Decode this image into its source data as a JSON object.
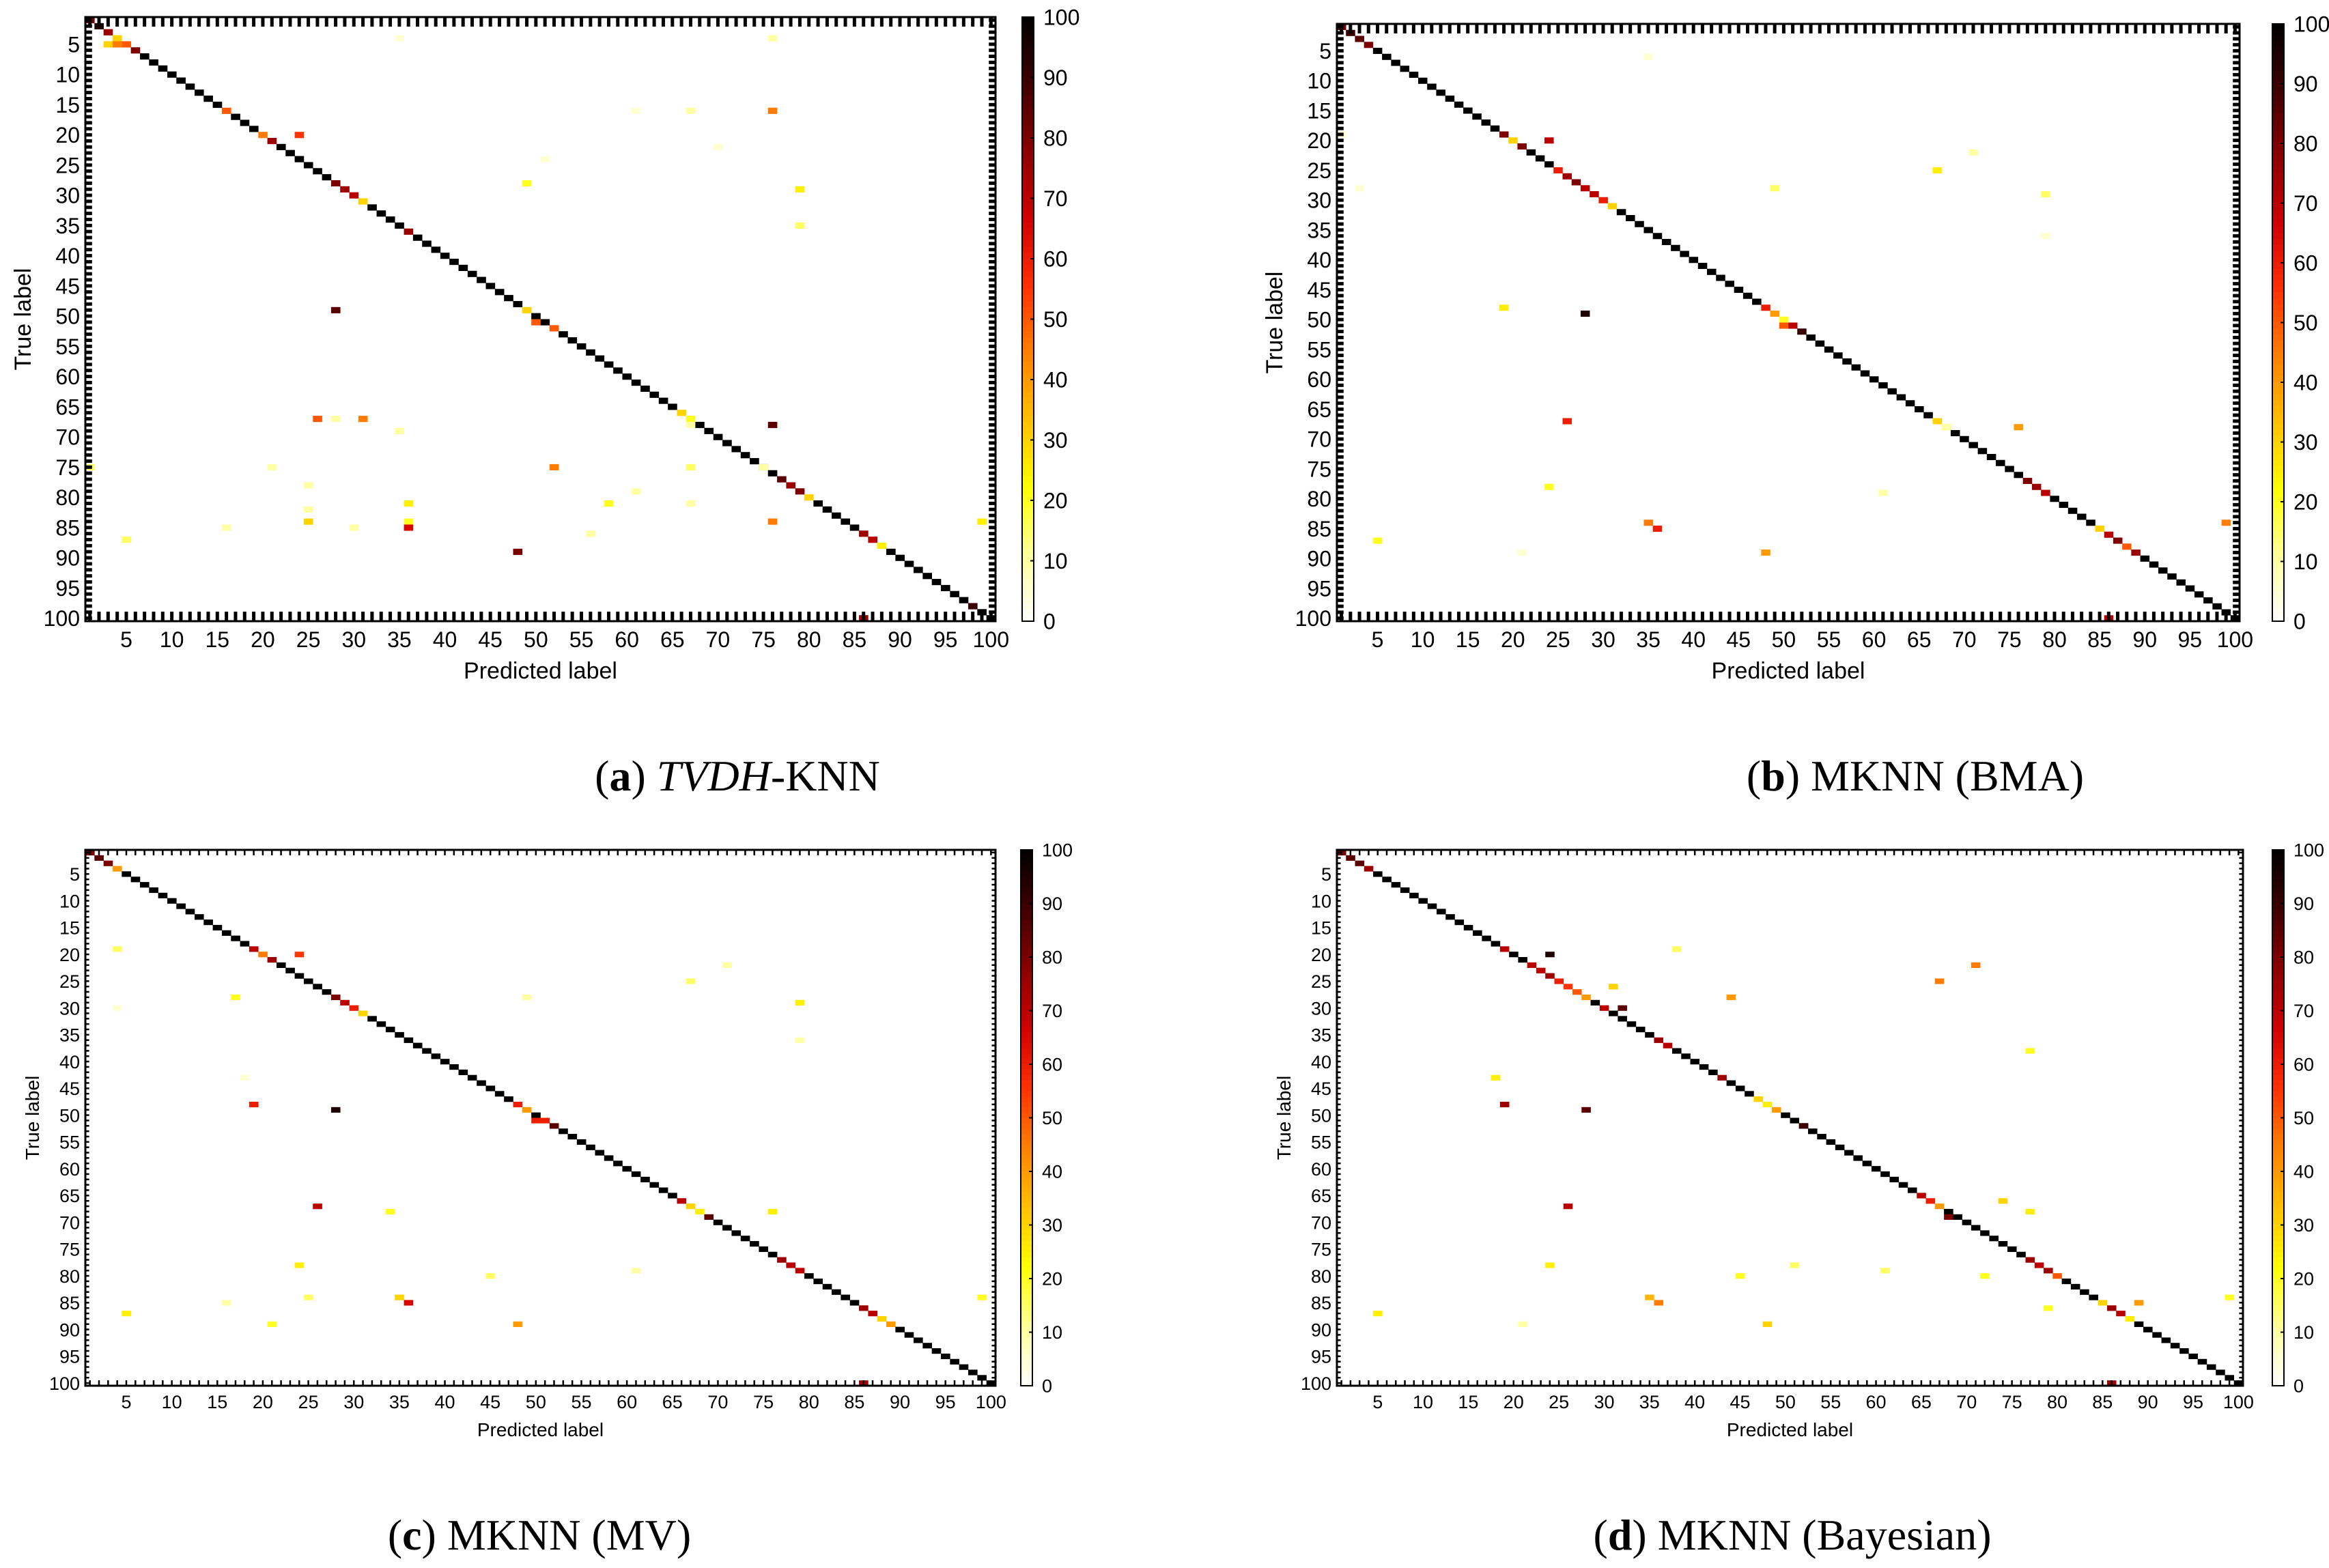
{
  "figure": {
    "colorbar": {
      "ticks": [
        0,
        10,
        20,
        30,
        40,
        50,
        60,
        70,
        80,
        90,
        100
      ],
      "colormap": [
        "#ffffff",
        "#ffff99",
        "#ffff00",
        "#ffc000",
        "#ff8000",
        "#ff3000",
        "#d00000",
        "#8b0000",
        "#400000",
        "#000000"
      ]
    }
  },
  "chart_data": [
    {
      "type": "heatmap",
      "title": "",
      "caption": {
        "letter": "(a)",
        "italic": "TVDH",
        "rest": "-KNN"
      },
      "xlabel": "Predicted label",
      "ylabel": "True label",
      "n_classes": 100,
      "xticks": [
        5,
        10,
        15,
        20,
        25,
        30,
        35,
        40,
        45,
        50,
        55,
        60,
        65,
        70,
        75,
        80,
        85,
        90,
        95,
        100
      ],
      "yticks": [
        5,
        10,
        15,
        20,
        25,
        30,
        35,
        40,
        45,
        50,
        55,
        60,
        65,
        70,
        75,
        80,
        85,
        90,
        95,
        100
      ],
      "zlim": [
        0,
        100
      ],
      "diagonal_default": 100,
      "diagonal_overrides": [
        [
          1,
          80
        ],
        [
          2,
          95
        ],
        [
          3,
          75
        ],
        [
          4,
          30
        ],
        [
          5,
          50
        ],
        [
          6,
          80
        ],
        [
          16,
          50
        ],
        [
          20,
          45
        ],
        [
          21,
          75
        ],
        [
          28,
          80
        ],
        [
          29,
          75
        ],
        [
          30,
          70
        ],
        [
          31,
          30
        ],
        [
          36,
          75
        ],
        [
          49,
          30
        ],
        [
          52,
          50
        ],
        [
          66,
          30
        ],
        [
          67,
          20
        ],
        [
          77,
          85
        ],
        [
          78,
          75
        ],
        [
          79,
          80
        ],
        [
          80,
          30
        ],
        [
          86,
          75
        ],
        [
          87,
          70
        ],
        [
          88,
          25
        ],
        [
          98,
          90
        ]
      ],
      "cells": [
        [
          5,
          3,
          30
        ],
        [
          5,
          4,
          45
        ],
        [
          4,
          35,
          5
        ],
        [
          4,
          76,
          10
        ],
        [
          16,
          61,
          5
        ],
        [
          16,
          67,
          10
        ],
        [
          16,
          76,
          45
        ],
        [
          20,
          24,
          55
        ],
        [
          22,
          70,
          5
        ],
        [
          24,
          51,
          5
        ],
        [
          28,
          49,
          20
        ],
        [
          29,
          79,
          25
        ],
        [
          35,
          79,
          15
        ],
        [
          49,
          28,
          85
        ],
        [
          51,
          50,
          50
        ],
        [
          67,
          26,
          50
        ],
        [
          67,
          31,
          45
        ],
        [
          67,
          28,
          10
        ],
        [
          68,
          76,
          85
        ],
        [
          68,
          67,
          10
        ],
        [
          69,
          35,
          10
        ],
        [
          75,
          1,
          15
        ],
        [
          75,
          21,
          10
        ],
        [
          75,
          52,
          45
        ],
        [
          75,
          67,
          15
        ],
        [
          75,
          75,
          10
        ],
        [
          78,
          25,
          10
        ],
        [
          79,
          61,
          10
        ],
        [
          81,
          36,
          25
        ],
        [
          81,
          58,
          20
        ],
        [
          81,
          67,
          10
        ],
        [
          82,
          25,
          10
        ],
        [
          84,
          25,
          30
        ],
        [
          84,
          36,
          20
        ],
        [
          84,
          76,
          45
        ],
        [
          84,
          99,
          25
        ],
        [
          85,
          16,
          10
        ],
        [
          85,
          30,
          10
        ],
        [
          85,
          36,
          65
        ],
        [
          86,
          56,
          10
        ],
        [
          87,
          5,
          15
        ],
        [
          89,
          48,
          80
        ],
        [
          100,
          86,
          75
        ]
      ]
    },
    {
      "type": "heatmap",
      "title": "",
      "caption": {
        "letter": "(b)",
        "italic": "",
        "rest": "MKNN (BMA)"
      },
      "xlabel": "Predicted label",
      "ylabel": "True label",
      "n_classes": 100,
      "xticks": [
        5,
        10,
        15,
        20,
        25,
        30,
        35,
        40,
        45,
        50,
        55,
        60,
        65,
        70,
        75,
        80,
        85,
        90,
        95,
        100
      ],
      "yticks": [
        5,
        10,
        15,
        20,
        25,
        30,
        35,
        40,
        45,
        50,
        55,
        60,
        65,
        70,
        75,
        80,
        85,
        90,
        95,
        100
      ],
      "zlim": [
        0,
        100
      ],
      "diagonal_default": 100,
      "diagonal_overrides": [
        [
          1,
          80
        ],
        [
          2,
          90
        ],
        [
          3,
          85
        ],
        [
          4,
          80
        ],
        [
          19,
          80
        ],
        [
          20,
          30
        ],
        [
          21,
          80
        ],
        [
          25,
          60
        ],
        [
          26,
          75
        ],
        [
          27,
          80
        ],
        [
          28,
          70
        ],
        [
          29,
          70
        ],
        [
          30,
          60
        ],
        [
          31,
          30
        ],
        [
          48,
          60
        ],
        [
          49,
          40
        ],
        [
          50,
          20
        ],
        [
          51,
          70
        ],
        [
          52,
          90
        ],
        [
          67,
          30
        ],
        [
          68,
          20
        ],
        [
          77,
          80
        ],
        [
          78,
          75
        ],
        [
          79,
          70
        ],
        [
          85,
          30
        ],
        [
          86,
          70
        ],
        [
          87,
          80
        ],
        [
          88,
          50
        ],
        [
          89,
          75
        ]
      ],
      "cells": [
        [
          6,
          35,
          5
        ],
        [
          19,
          1,
          5
        ],
        [
          20,
          24,
          70
        ],
        [
          22,
          71,
          10
        ],
        [
          25,
          67,
          25
        ],
        [
          28,
          49,
          15
        ],
        [
          28,
          3,
          5
        ],
        [
          29,
          79,
          15
        ],
        [
          36,
          79,
          5
        ],
        [
          48,
          19,
          25
        ],
        [
          49,
          28,
          95
        ],
        [
          51,
          50,
          50
        ],
        [
          67,
          26,
          60
        ],
        [
          68,
          76,
          40
        ],
        [
          68,
          68,
          10
        ],
        [
          78,
          24,
          20
        ],
        [
          79,
          61,
          10
        ],
        [
          84,
          35,
          45
        ],
        [
          84,
          99,
          45
        ],
        [
          85,
          36,
          60
        ],
        [
          87,
          5,
          20
        ],
        [
          89,
          48,
          40
        ],
        [
          89,
          21,
          5
        ],
        [
          100,
          86,
          70
        ]
      ]
    },
    {
      "type": "heatmap",
      "title": "",
      "caption": {
        "letter": "(c)",
        "italic": "",
        "rest": "MKNN (MV)"
      },
      "xlabel": "Predicted label",
      "ylabel": "True label",
      "n_classes": 100,
      "xticks": [
        5,
        10,
        15,
        20,
        25,
        30,
        35,
        40,
        45,
        50,
        55,
        60,
        65,
        70,
        75,
        80,
        85,
        90,
        95,
        100
      ],
      "yticks": [
        5,
        10,
        15,
        20,
        25,
        30,
        35,
        40,
        45,
        50,
        55,
        60,
        65,
        70,
        75,
        80,
        85,
        90,
        95,
        100
      ],
      "zlim": [
        0,
        100
      ],
      "diagonal_default": 100,
      "diagonal_overrides": [
        [
          1,
          80
        ],
        [
          2,
          85
        ],
        [
          3,
          80
        ],
        [
          4,
          40
        ],
        [
          19,
          70
        ],
        [
          20,
          45
        ],
        [
          21,
          75
        ],
        [
          28,
          80
        ],
        [
          29,
          70
        ],
        [
          30,
          60
        ],
        [
          31,
          30
        ],
        [
          48,
          60
        ],
        [
          49,
          40
        ],
        [
          51,
          60
        ],
        [
          52,
          85
        ],
        [
          66,
          70
        ],
        [
          67,
          30
        ],
        [
          68,
          25
        ],
        [
          69,
          85
        ],
        [
          77,
          75
        ],
        [
          78,
          70
        ],
        [
          79,
          70
        ],
        [
          86,
          75
        ],
        [
          87,
          70
        ],
        [
          88,
          30
        ],
        [
          89,
          40
        ]
      ],
      "cells": [
        [
          19,
          4,
          15
        ],
        [
          20,
          24,
          55
        ],
        [
          25,
          67,
          15
        ],
        [
          22,
          71,
          10
        ],
        [
          28,
          17,
          20
        ],
        [
          28,
          49,
          10
        ],
        [
          29,
          79,
          25
        ],
        [
          30,
          4,
          5
        ],
        [
          36,
          79,
          10
        ],
        [
          43,
          18,
          5
        ],
        [
          48,
          19,
          60
        ],
        [
          49,
          28,
          95
        ],
        [
          51,
          50,
          60
        ],
        [
          67,
          26,
          70
        ],
        [
          68,
          34,
          20
        ],
        [
          68,
          76,
          25
        ],
        [
          78,
          24,
          25
        ],
        [
          79,
          61,
          10
        ],
        [
          80,
          45,
          15
        ],
        [
          84,
          35,
          30
        ],
        [
          84,
          99,
          20
        ],
        [
          85,
          36,
          65
        ],
        [
          84,
          25,
          15
        ],
        [
          85,
          16,
          10
        ],
        [
          87,
          5,
          25
        ],
        [
          89,
          21,
          20
        ],
        [
          89,
          48,
          40
        ],
        [
          100,
          86,
          75
        ]
      ]
    },
    {
      "type": "heatmap",
      "title": "",
      "caption": {
        "letter": "(d)",
        "italic": "",
        "rest": "MKNN (Bayesian)"
      },
      "xlabel": "Predicted label",
      "ylabel": "True label",
      "n_classes": 100,
      "xticks": [
        5,
        10,
        15,
        20,
        25,
        30,
        35,
        40,
        45,
        50,
        55,
        60,
        65,
        70,
        75,
        80,
        85,
        90,
        95,
        100
      ],
      "yticks": [
        5,
        10,
        15,
        20,
        25,
        30,
        35,
        40,
        45,
        50,
        55,
        60,
        65,
        70,
        75,
        80,
        85,
        90,
        95,
        100
      ],
      "zlim": [
        0,
        100
      ],
      "diagonal_default": 100,
      "diagonal_overrides": [
        [
          1,
          80
        ],
        [
          2,
          85
        ],
        [
          3,
          85
        ],
        [
          4,
          75
        ],
        [
          19,
          70
        ],
        [
          22,
          70
        ],
        [
          23,
          70
        ],
        [
          24,
          75
        ],
        [
          25,
          60
        ],
        [
          26,
          55
        ],
        [
          27,
          50
        ],
        [
          28,
          40
        ],
        [
          30,
          70
        ],
        [
          36,
          75
        ],
        [
          37,
          70
        ],
        [
          43,
          75
        ],
        [
          47,
          30
        ],
        [
          48,
          25
        ],
        [
          49,
          40
        ],
        [
          65,
          70
        ],
        [
          66,
          60
        ],
        [
          67,
          40
        ],
        [
          77,
          75
        ],
        [
          78,
          70
        ],
        [
          79,
          75
        ],
        [
          80,
          50
        ],
        [
          85,
          30
        ],
        [
          86,
          75
        ],
        [
          87,
          70
        ],
        [
          88,
          25
        ]
      ],
      "cells": [
        [
          20,
          24,
          95
        ],
        [
          25,
          67,
          45
        ],
        [
          22,
          71,
          45
        ],
        [
          26,
          31,
          30
        ],
        [
          28,
          44,
          40
        ],
        [
          30,
          32,
          85
        ],
        [
          19,
          38,
          15
        ],
        [
          38,
          77,
          20
        ],
        [
          43,
          18,
          25
        ],
        [
          48,
          19,
          75
        ],
        [
          49,
          28,
          85
        ],
        [
          52,
          52,
          90
        ],
        [
          66,
          74,
          30
        ],
        [
          67,
          26,
          70
        ],
        [
          68,
          77,
          25
        ],
        [
          69,
          68,
          80
        ],
        [
          78,
          24,
          25
        ],
        [
          78,
          51,
          15
        ],
        [
          79,
          61,
          15
        ],
        [
          80,
          45,
          20
        ],
        [
          80,
          72,
          20
        ],
        [
          84,
          35,
          35
        ],
        [
          84,
          99,
          20
        ],
        [
          85,
          36,
          45
        ],
        [
          86,
          79,
          20
        ],
        [
          87,
          5,
          25
        ],
        [
          89,
          48,
          30
        ],
        [
          89,
          21,
          10
        ],
        [
          85,
          89,
          40
        ],
        [
          100,
          86,
          75
        ]
      ]
    }
  ]
}
